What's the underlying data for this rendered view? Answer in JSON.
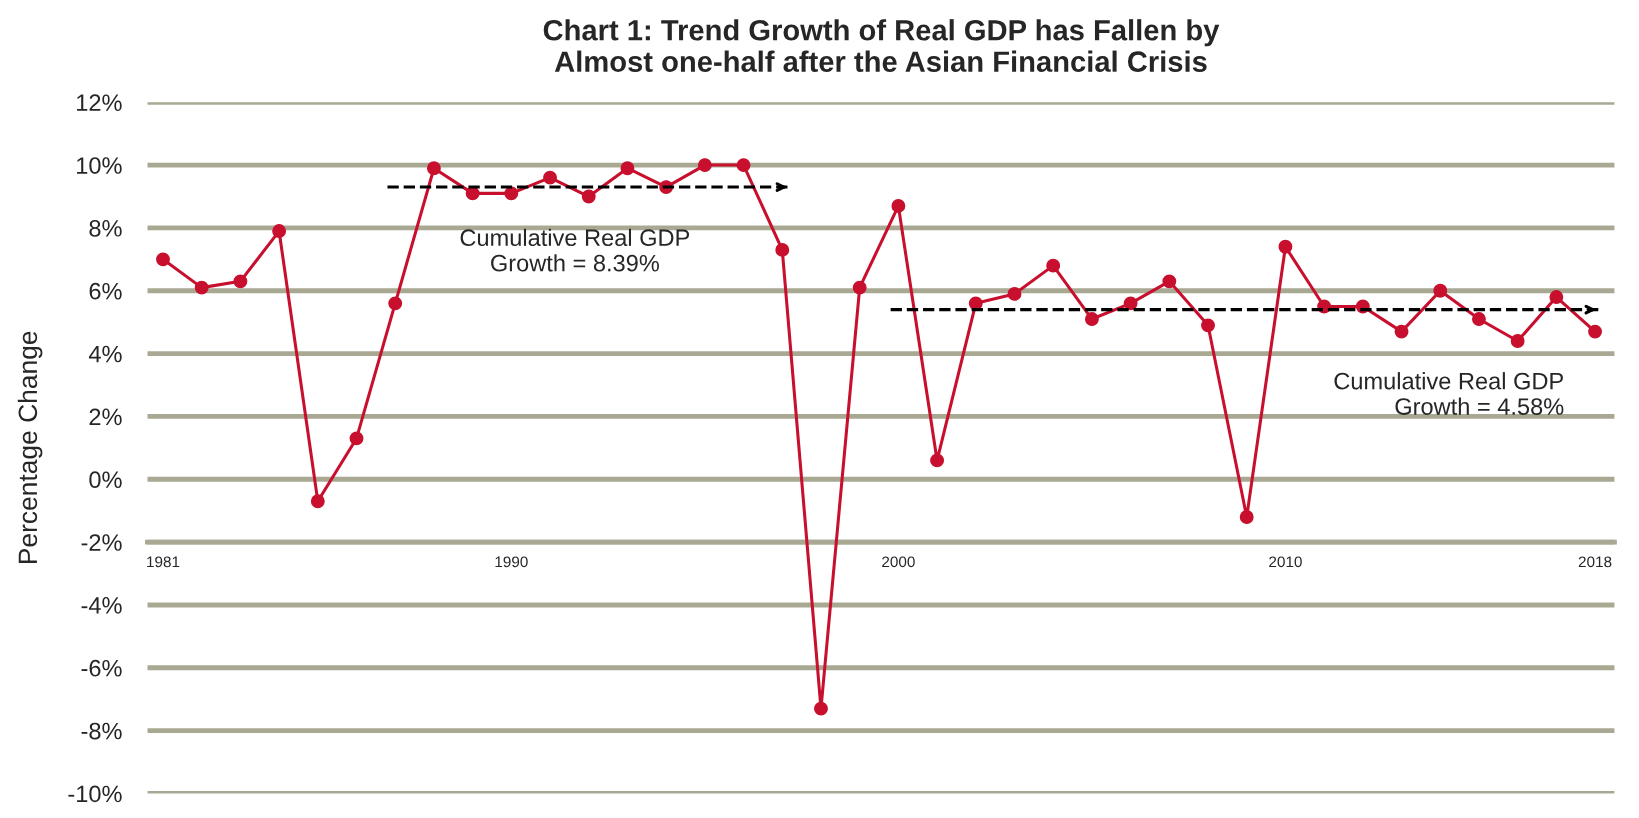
{
  "chart_data": {
    "type": "line",
    "title": "Chart 1: Trend Growth of Real GDP has Fallen by\nAlmost one-half after the Asian Financial Crisis",
    "ylabel": "Percentage Change",
    "x": [
      1981,
      1982,
      1983,
      1984,
      1985,
      1986,
      1987,
      1988,
      1989,
      1990,
      1991,
      1992,
      1993,
      1994,
      1995,
      1996,
      1997,
      1998,
      1999,
      2000,
      2001,
      2002,
      2003,
      2004,
      2005,
      2006,
      2007,
      2008,
      2009,
      2010,
      2011,
      2012,
      2013,
      2014,
      2015,
      2016,
      2017,
      2018
    ],
    "series": [
      {
        "color": "#c8102e",
        "marker": "circle",
        "line_style": "solid",
        "values": [
          7.0,
          6.1,
          6.3,
          7.9,
          -0.7,
          1.3,
          5.6,
          9.9,
          9.1,
          9.1,
          9.6,
          9.0,
          9.9,
          9.3,
          10.0,
          10.0,
          7.3,
          -7.3,
          6.1,
          8.7,
          0.6,
          5.6,
          5.9,
          6.8,
          5.1,
          5.6,
          6.3,
          4.9,
          -1.2,
          7.4,
          5.5,
          5.5,
          4.7,
          6.0,
          5.1,
          4.4,
          5.8,
          4.7
        ]
      },
      {
        "color": "#000000",
        "marker": "none",
        "line_style": "dashed",
        "x": [
          1986.8,
          1997.2
        ],
        "values": [
          9.3,
          9.3
        ]
      },
      {
        "color": "#000000",
        "marker": "none",
        "line_style": "dashed",
        "x": [
          1999.8,
          2018.1
        ],
        "values": [
          5.4,
          5.4
        ]
      }
    ],
    "xlim": [
      1980.6,
      2018.5
    ],
    "xticks": [
      1981,
      1990,
      2000,
      2010,
      2018
    ],
    "ylim": [
      -10,
      12
    ],
    "yticks": [
      {
        "value": -10,
        "label": "-10%"
      },
      {
        "value": -8,
        "label": "-8%"
      },
      {
        "value": -6,
        "label": "-6%"
      },
      {
        "value": -4,
        "label": "-4%"
      },
      {
        "value": -2,
        "label": "-2%"
      },
      {
        "value": 0,
        "label": "0%"
      },
      {
        "value": 2,
        "label": "2%"
      },
      {
        "value": 4,
        "label": "4%"
      },
      {
        "value": 6,
        "label": "6%"
      },
      {
        "value": 8,
        "label": "8%"
      },
      {
        "value": 10,
        "label": "10%"
      },
      {
        "value": 12,
        "label": "12%"
      }
    ],
    "grid": "y",
    "legend": false,
    "annotations": [
      "Cumulative Real GDP\nGrowth = 8.39%",
      "Cumulative Real GDP\nGrowth = 4.58%"
    ]
  }
}
